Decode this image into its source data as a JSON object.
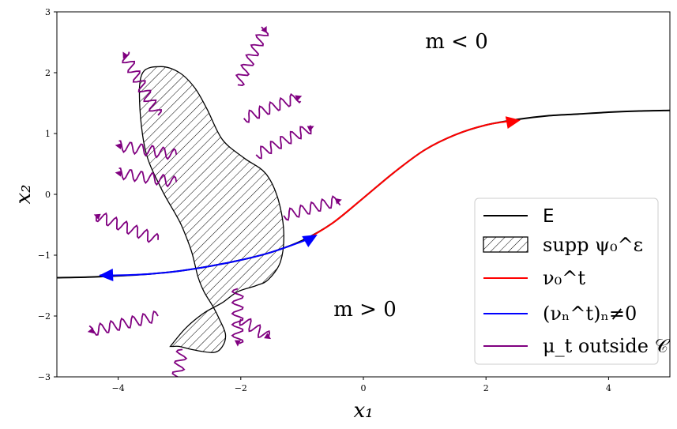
{
  "chart_data": {
    "type": "line",
    "xlabel": "x₁",
    "ylabel": "x₂",
    "xlim": [
      -5,
      5
    ],
    "ylim": [
      -3,
      3
    ],
    "x_ticks": [
      -4,
      -2,
      0,
      2,
      4
    ],
    "y_ticks": [
      -3,
      -2,
      -1,
      0,
      1,
      2,
      3
    ],
    "x_tick_labels": [
      "−4",
      "−2",
      "0",
      "2",
      "4"
    ],
    "y_tick_labels": [
      "−3",
      "−2",
      "−1",
      "0",
      "1",
      "2",
      "3"
    ],
    "grid": false,
    "annotations": [
      {
        "text": "m < 0",
        "x": 1.5,
        "y": 2.5
      },
      {
        "text": "m > 0",
        "x": 0.0,
        "y": -1.9
      }
    ],
    "legend": {
      "placement": "lower-right",
      "entries": [
        {
          "label": "E",
          "style": "line",
          "color": "#000000"
        },
        {
          "label": "supp ψ₀^ε",
          "style": "hatch",
          "color": "#000000"
        },
        {
          "label": "ν₀^t",
          "style": "line",
          "color": "#ff0000"
        },
        {
          "label": "(νₙ^t)ₙ≠0",
          "style": "line",
          "color": "#0000ff"
        },
        {
          "label": "μ_t outside 𝒞",
          "style": "line",
          "color": "#800080"
        }
      ]
    },
    "series": [
      {
        "name": "E",
        "color": "#000000",
        "x": [
          -5,
          -4.5,
          -4,
          -3.5,
          -3,
          -2.5,
          -2,
          -1.5,
          -1,
          -0.5,
          0,
          0.5,
          1,
          1.5,
          2,
          2.5,
          3,
          3.5,
          4,
          4.5,
          5
        ],
        "y": [
          -1.37,
          -1.36,
          -1.34,
          -1.31,
          -1.26,
          -1.18,
          -1.08,
          -0.95,
          -0.76,
          -0.47,
          -0.06,
          0.36,
          0.73,
          0.98,
          1.14,
          1.23,
          1.29,
          1.32,
          1.35,
          1.37,
          1.38
        ]
      },
      {
        "name": "ν₀^t",
        "color": "#ff0000",
        "x": [
          -0.9,
          -0.5,
          0,
          0.5,
          1,
          1.5,
          2,
          2.5
        ],
        "y": [
          -0.72,
          -0.47,
          -0.06,
          0.36,
          0.73,
          0.98,
          1.14,
          1.22
        ]
      },
      {
        "name": "(νₙ^t)ₙ≠0",
        "color": "#0000ff",
        "x": [
          -4.3,
          -4,
          -3.5,
          -3,
          -2.5,
          -2,
          -1.5,
          -0.85
        ],
        "y": [
          -1.33,
          -1.33,
          -1.31,
          -1.26,
          -1.18,
          -1.08,
          -0.95,
          -0.72
        ]
      }
    ],
    "support_region": {
      "color": "#000000",
      "fill": "hatch",
      "x": [
        -3.15,
        -2.9,
        -2.6,
        -2.3,
        -2.05,
        -1.75,
        -1.55,
        -1.35,
        -1.3,
        -1.4,
        -1.6,
        -1.95,
        -2.3,
        -2.55,
        -2.75,
        -3.0,
        -3.3,
        -3.6,
        -3.65,
        -3.55,
        -3.3,
        -3.05,
        -2.95,
        -2.8,
        -2.7,
        -2.6,
        -2.45,
        -2.35,
        -2.25,
        -2.3,
        -2.45,
        -2.8,
        -3.0,
        -3.1
      ],
      "y": [
        -2.5,
        -2.2,
        -1.95,
        -1.78,
        -1.6,
        -1.5,
        -1.4,
        -1.1,
        -0.6,
        -0.05,
        0.35,
        0.6,
        0.9,
        1.4,
        1.75,
        2.0,
        2.1,
        2.0,
        1.5,
        0.7,
        0.1,
        -0.35,
        -0.55,
        -0.95,
        -1.35,
        -1.6,
        -1.85,
        -2.05,
        -2.3,
        -2.5,
        -2.6,
        -2.55,
        -2.5,
        -2.5
      ]
    },
    "wavy_paths": [
      {
        "x0": -3.35,
        "y0": 1.3,
        "x1": -3.9,
        "y1": 2.3
      },
      {
        "x0": -2.05,
        "y0": 1.8,
        "x1": -1.6,
        "y1": 2.72
      },
      {
        "x0": -1.95,
        "y0": 1.25,
        "x1": -1.05,
        "y1": 1.6
      },
      {
        "x0": -1.75,
        "y0": 0.65,
        "x1": -0.85,
        "y1": 1.1
      },
      {
        "x0": -3.05,
        "y0": 0.65,
        "x1": -4.0,
        "y1": 0.8
      },
      {
        "x0": -3.05,
        "y0": 0.2,
        "x1": -4.0,
        "y1": 0.35
      },
      {
        "x0": -1.3,
        "y0": -0.35,
        "x1": -0.4,
        "y1": -0.1
      },
      {
        "x0": -3.35,
        "y0": -0.75,
        "x1": -4.35,
        "y1": -0.35
      },
      {
        "x0": -3.35,
        "y0": -2.0,
        "x1": -4.45,
        "y1": -2.25
      },
      {
        "x0": -2.05,
        "y0": -1.55,
        "x1": -2.05,
        "y1": -2.45
      },
      {
        "x0": -2.0,
        "y0": -2.05,
        "x1": -1.55,
        "y1": -2.35
      },
      {
        "x0": -2.95,
        "y0": -2.55,
        "x1": -3.1,
        "y1": -3.3
      }
    ],
    "wave_color": "#800080",
    "arrow_markers": [
      {
        "x": 2.45,
        "y": 1.2,
        "dir": 1,
        "color": "#ff0000"
      },
      {
        "x": -0.85,
        "y": -0.72,
        "dir": 1,
        "color": "#0000ff"
      },
      {
        "x": -4.2,
        "y": -1.33,
        "dir": -1,
        "color": "#0000ff"
      }
    ]
  }
}
